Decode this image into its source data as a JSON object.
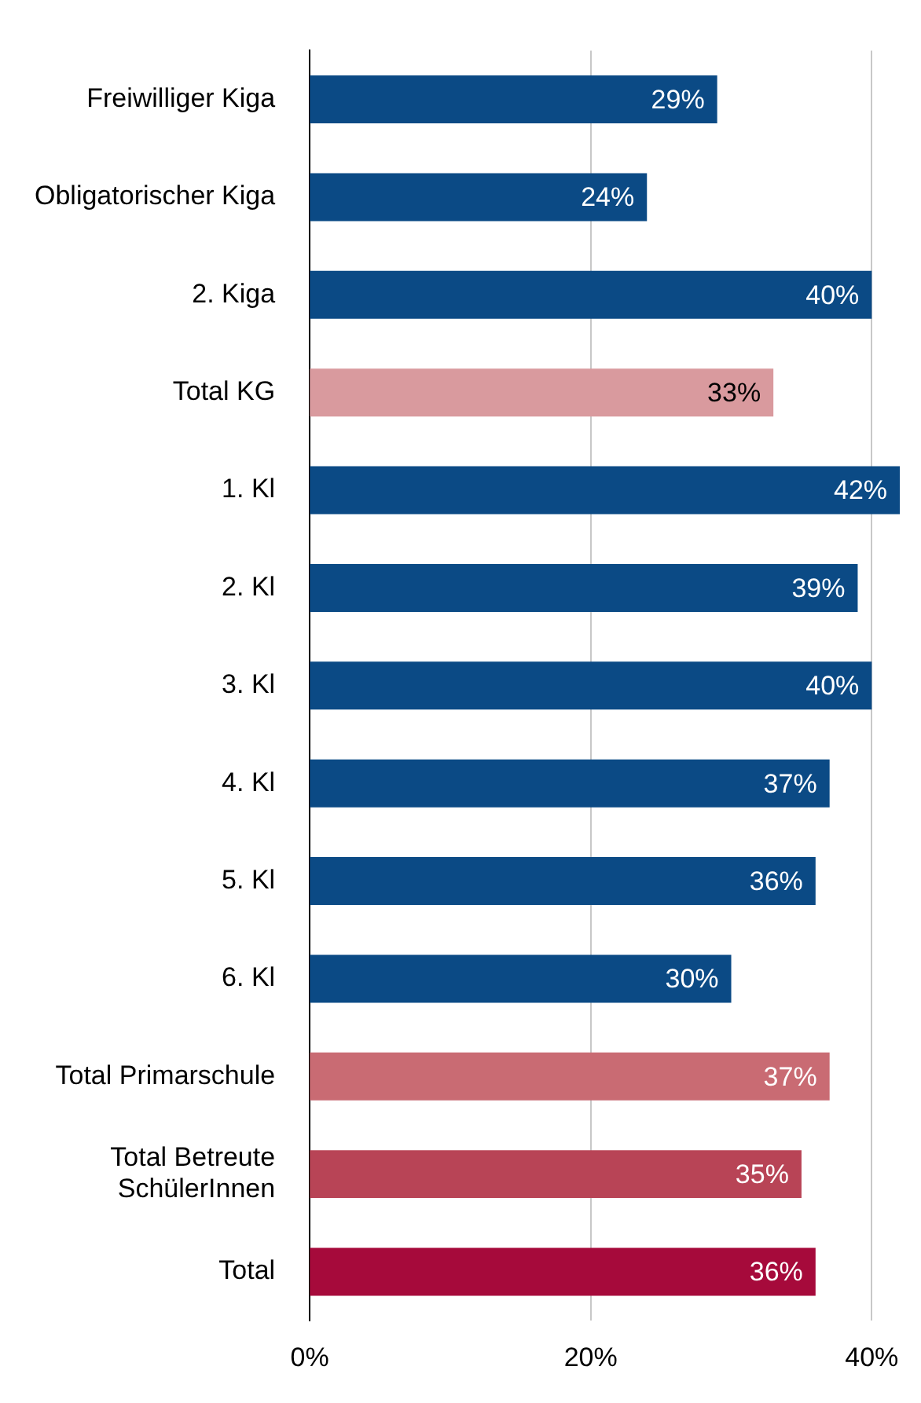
{
  "chart_data": {
    "type": "bar",
    "orientation": "horizontal",
    "categories": [
      "Freiwilliger Kiga",
      "Obligatorischer Kiga",
      "2. Kiga",
      "Total KG",
      "1. Kl",
      "2. Kl",
      "3. Kl",
      "4. Kl",
      "5. Kl",
      "6. Kl",
      "Total Primarschule",
      "Total Betreute SchülerInnen",
      "Total"
    ],
    "values": [
      29,
      24,
      40,
      33,
      42,
      39,
      40,
      37,
      36,
      30,
      37,
      35,
      36
    ],
    "colors": [
      "#0b4a85",
      "#0b4a85",
      "#0b4a85",
      "#d99a9e",
      "#0b4a85",
      "#0b4a85",
      "#0b4a85",
      "#0b4a85",
      "#0b4a85",
      "#0b4a85",
      "#c96b73",
      "#b84456",
      "#a60a3b"
    ],
    "value_labels": [
      "29%",
      "24%",
      "40%",
      "33%",
      "42%",
      "39%",
      "40%",
      "37%",
      "36%",
      "30%",
      "37%",
      "35%",
      "36%"
    ],
    "xlim": [
      0,
      42.3
    ],
    "xticks": [
      {
        "value": 0,
        "label": "0%"
      },
      {
        "value": 20,
        "label": "20%"
      },
      {
        "value": 40,
        "label": "40%"
      }
    ],
    "grid": "x",
    "legend": false
  }
}
